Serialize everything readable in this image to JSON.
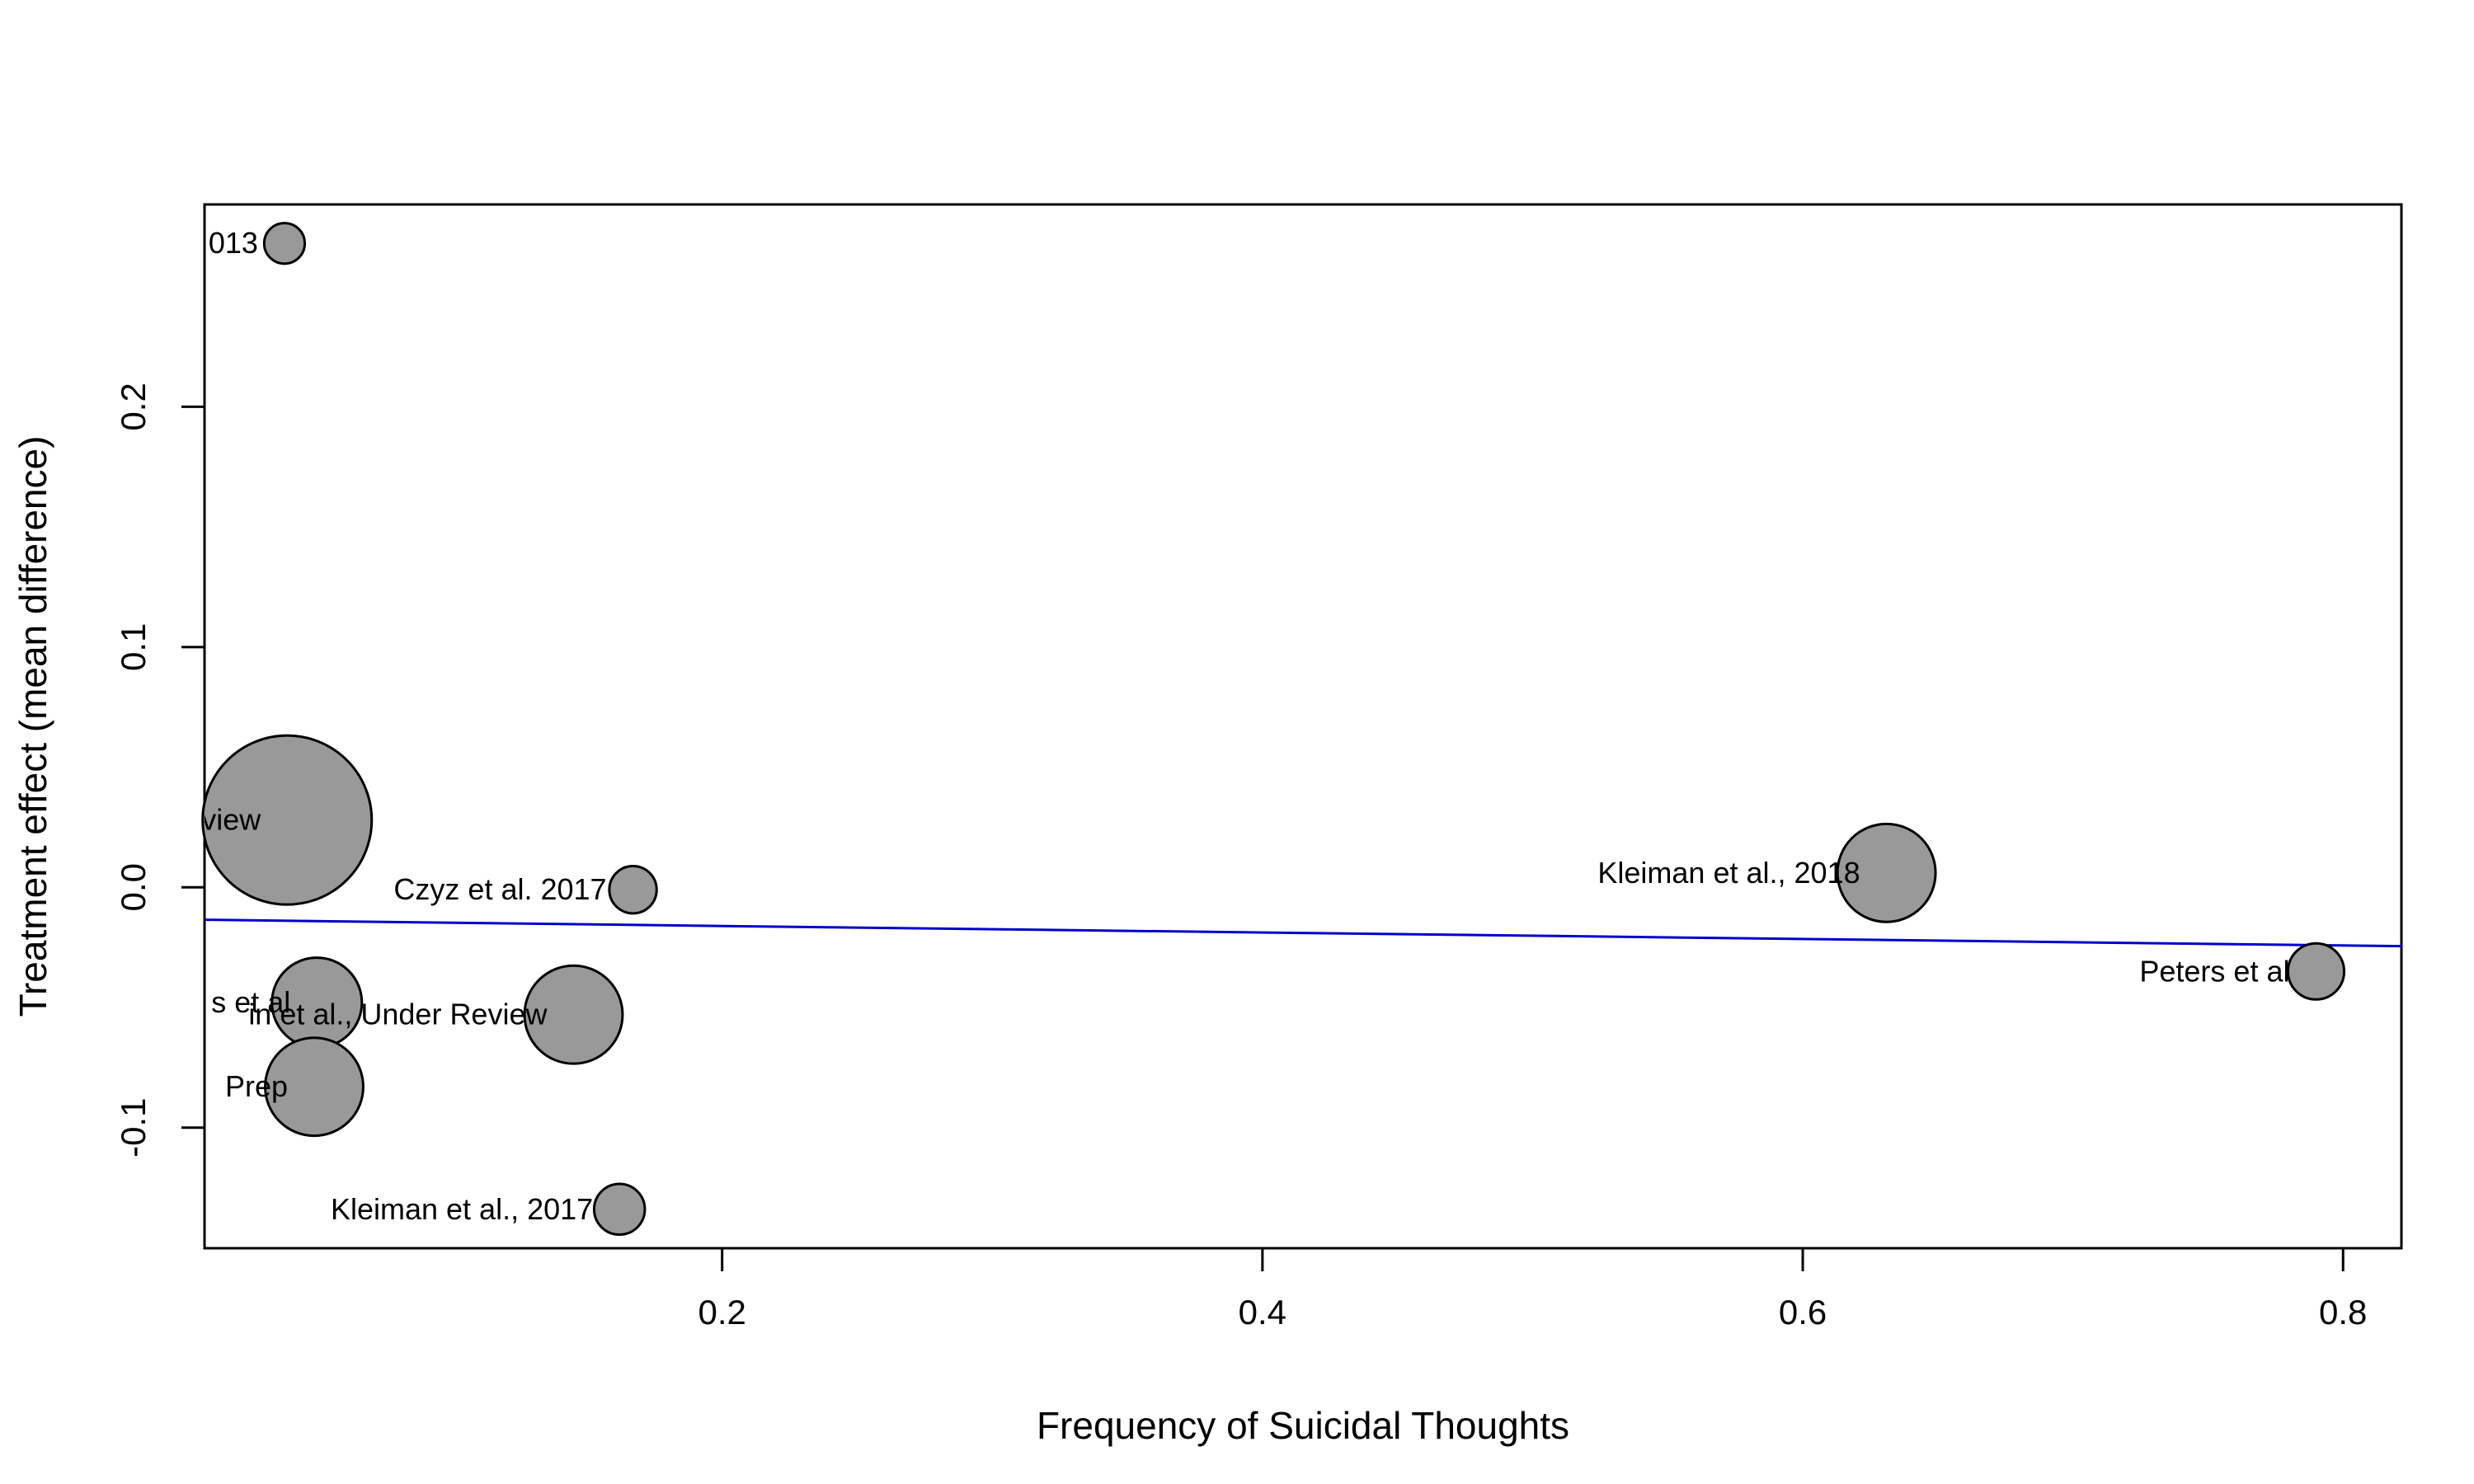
{
  "chart_data": {
    "type": "scatter",
    "title": "",
    "xlabel": "Frequency of Suicidal Thoughts",
    "ylabel": "Treatment effect (mean difference)",
    "xlim": [
      0.0084,
      0.8216
    ],
    "ylim": [
      -0.1502,
      0.2842
    ],
    "x_ticks": [
      0.2,
      0.4,
      0.6,
      0.8
    ],
    "x_tick_labels": [
      "0.2",
      "0.4",
      "0.6",
      "0.8"
    ],
    "y_ticks": [
      -0.1,
      0.0,
      0.1,
      0.2
    ],
    "y_tick_labels": [
      "-0.1",
      "0.0",
      "0.1",
      "0.2"
    ],
    "grid": false,
    "legend": "none",
    "point_color": "#999999",
    "point_edge_color": "#000000",
    "line_color": "#0000cc",
    "points": [
      {
        "label": "013",
        "x": 0.038,
        "y": 0.268,
        "size": 0.6
      },
      {
        "label": "view",
        "x": 0.039,
        "y": 0.028,
        "size": 2.5
      },
      {
        "label": "Czyz et al. 2017",
        "x": 0.167,
        "y": -0.001,
        "size": 0.7
      },
      {
        "label": "Kleiman et al., 2018",
        "x": 0.631,
        "y": 0.006,
        "size": 1.45
      },
      {
        "label": "Peters et al",
        "x": 0.79,
        "y": -0.035,
        "size": 0.83
      },
      {
        "label": "s et al",
        "x": 0.05,
        "y": -0.048,
        "size": 1.33
      },
      {
        "label": "in et al., Under Review",
        "x": 0.145,
        "y": -0.053,
        "size": 1.45
      },
      {
        "label": "Prep",
        "x": 0.049,
        "y": -0.083,
        "size": 1.45
      },
      {
        "label": "Kleiman et al., 2017",
        "x": 0.162,
        "y": -0.134,
        "size": 0.75
      }
    ],
    "regression_line": {
      "x": [
        0.0084,
        0.8216
      ],
      "y": [
        -0.0135,
        -0.0245
      ]
    }
  }
}
